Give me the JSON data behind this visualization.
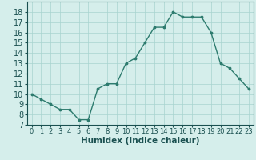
{
  "x": [
    0,
    1,
    2,
    3,
    4,
    5,
    6,
    7,
    8,
    9,
    10,
    11,
    12,
    13,
    14,
    15,
    16,
    17,
    18,
    19,
    20,
    21,
    22,
    23
  ],
  "y": [
    10,
    9.5,
    9,
    8.5,
    8.5,
    7.5,
    7.5,
    10.5,
    11,
    11,
    13,
    13.5,
    15,
    16.5,
    16.5,
    18,
    17.5,
    17.5,
    17.5,
    16,
    13,
    12.5,
    11.5,
    10.5
  ],
  "title": "",
  "xlabel": "Humidex (Indice chaleur)",
  "ylabel": "",
  "xlim": [
    -0.5,
    23.5
  ],
  "ylim": [
    7,
    19
  ],
  "yticks": [
    7,
    8,
    9,
    10,
    11,
    12,
    13,
    14,
    15,
    16,
    17,
    18
  ],
  "xticks": [
    0,
    1,
    2,
    3,
    4,
    5,
    6,
    7,
    8,
    9,
    10,
    11,
    12,
    13,
    14,
    15,
    16,
    17,
    18,
    19,
    20,
    21,
    22,
    23
  ],
  "line_color": "#2d7b6e",
  "marker_color": "#2d7b6e",
  "bg_color": "#d5eeeb",
  "grid_color": "#a8d4cf",
  "xlabel_color": "#1a5050",
  "tick_color": "#1a5050",
  "xlabel_fontsize": 7.5,
  "tick_fontsize_x": 6,
  "tick_fontsize_y": 7
}
